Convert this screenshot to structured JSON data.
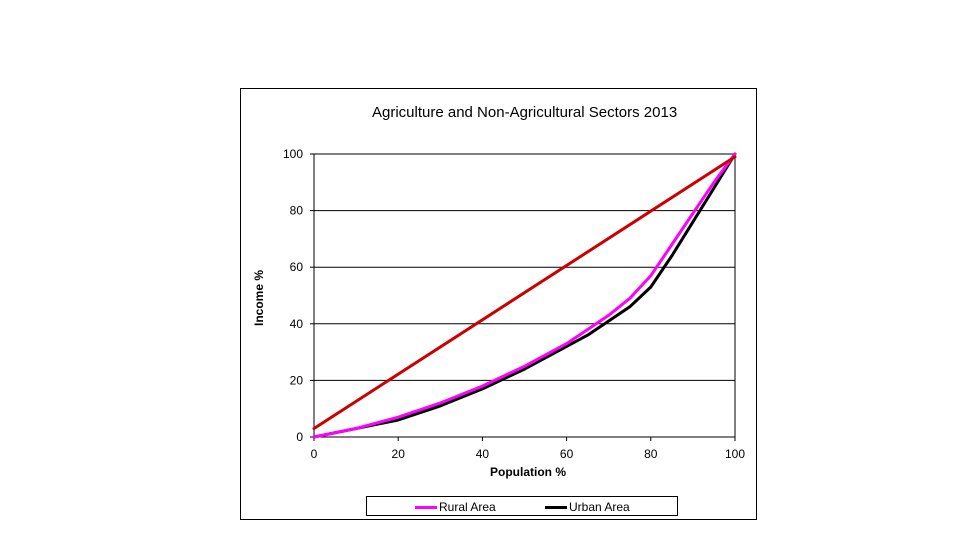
{
  "chart_data": {
    "type": "line",
    "title": "Agriculture and Non-Agricultural Sectors 2013",
    "xlabel": "Population %",
    "ylabel": "Income %",
    "xlim": [
      0,
      100
    ],
    "ylim": [
      0,
      100
    ],
    "x_ticks": [
      "0",
      "20",
      "40",
      "60",
      "80",
      "100"
    ],
    "y_ticks": [
      "0",
      "20",
      "40",
      "60",
      "80",
      "100"
    ],
    "grid": "horizontal",
    "legend_position": "bottom",
    "series": [
      {
        "name": "Rural Area",
        "color": "#ff00ff",
        "x": [
          0,
          10,
          20,
          30,
          40,
          50,
          60,
          65,
          70,
          75,
          80,
          85,
          90,
          95,
          100
        ],
        "y": [
          0,
          3,
          7,
          12,
          18,
          25,
          33,
          38,
          43,
          49,
          57,
          68,
          79,
          90,
          100
        ]
      },
      {
        "name": "Urban Area",
        "color": "#000000",
        "x": [
          0,
          10,
          20,
          30,
          40,
          50,
          60,
          65,
          70,
          75,
          80,
          85,
          90,
          95,
          100
        ],
        "y": [
          0,
          3,
          6,
          11,
          17,
          24,
          32,
          36,
          41,
          46,
          53,
          64,
          76,
          88,
          100
        ]
      },
      {
        "color": "#cc0000",
        "x": [
          0,
          100
        ],
        "y": [
          3,
          99
        ]
      }
    ]
  }
}
